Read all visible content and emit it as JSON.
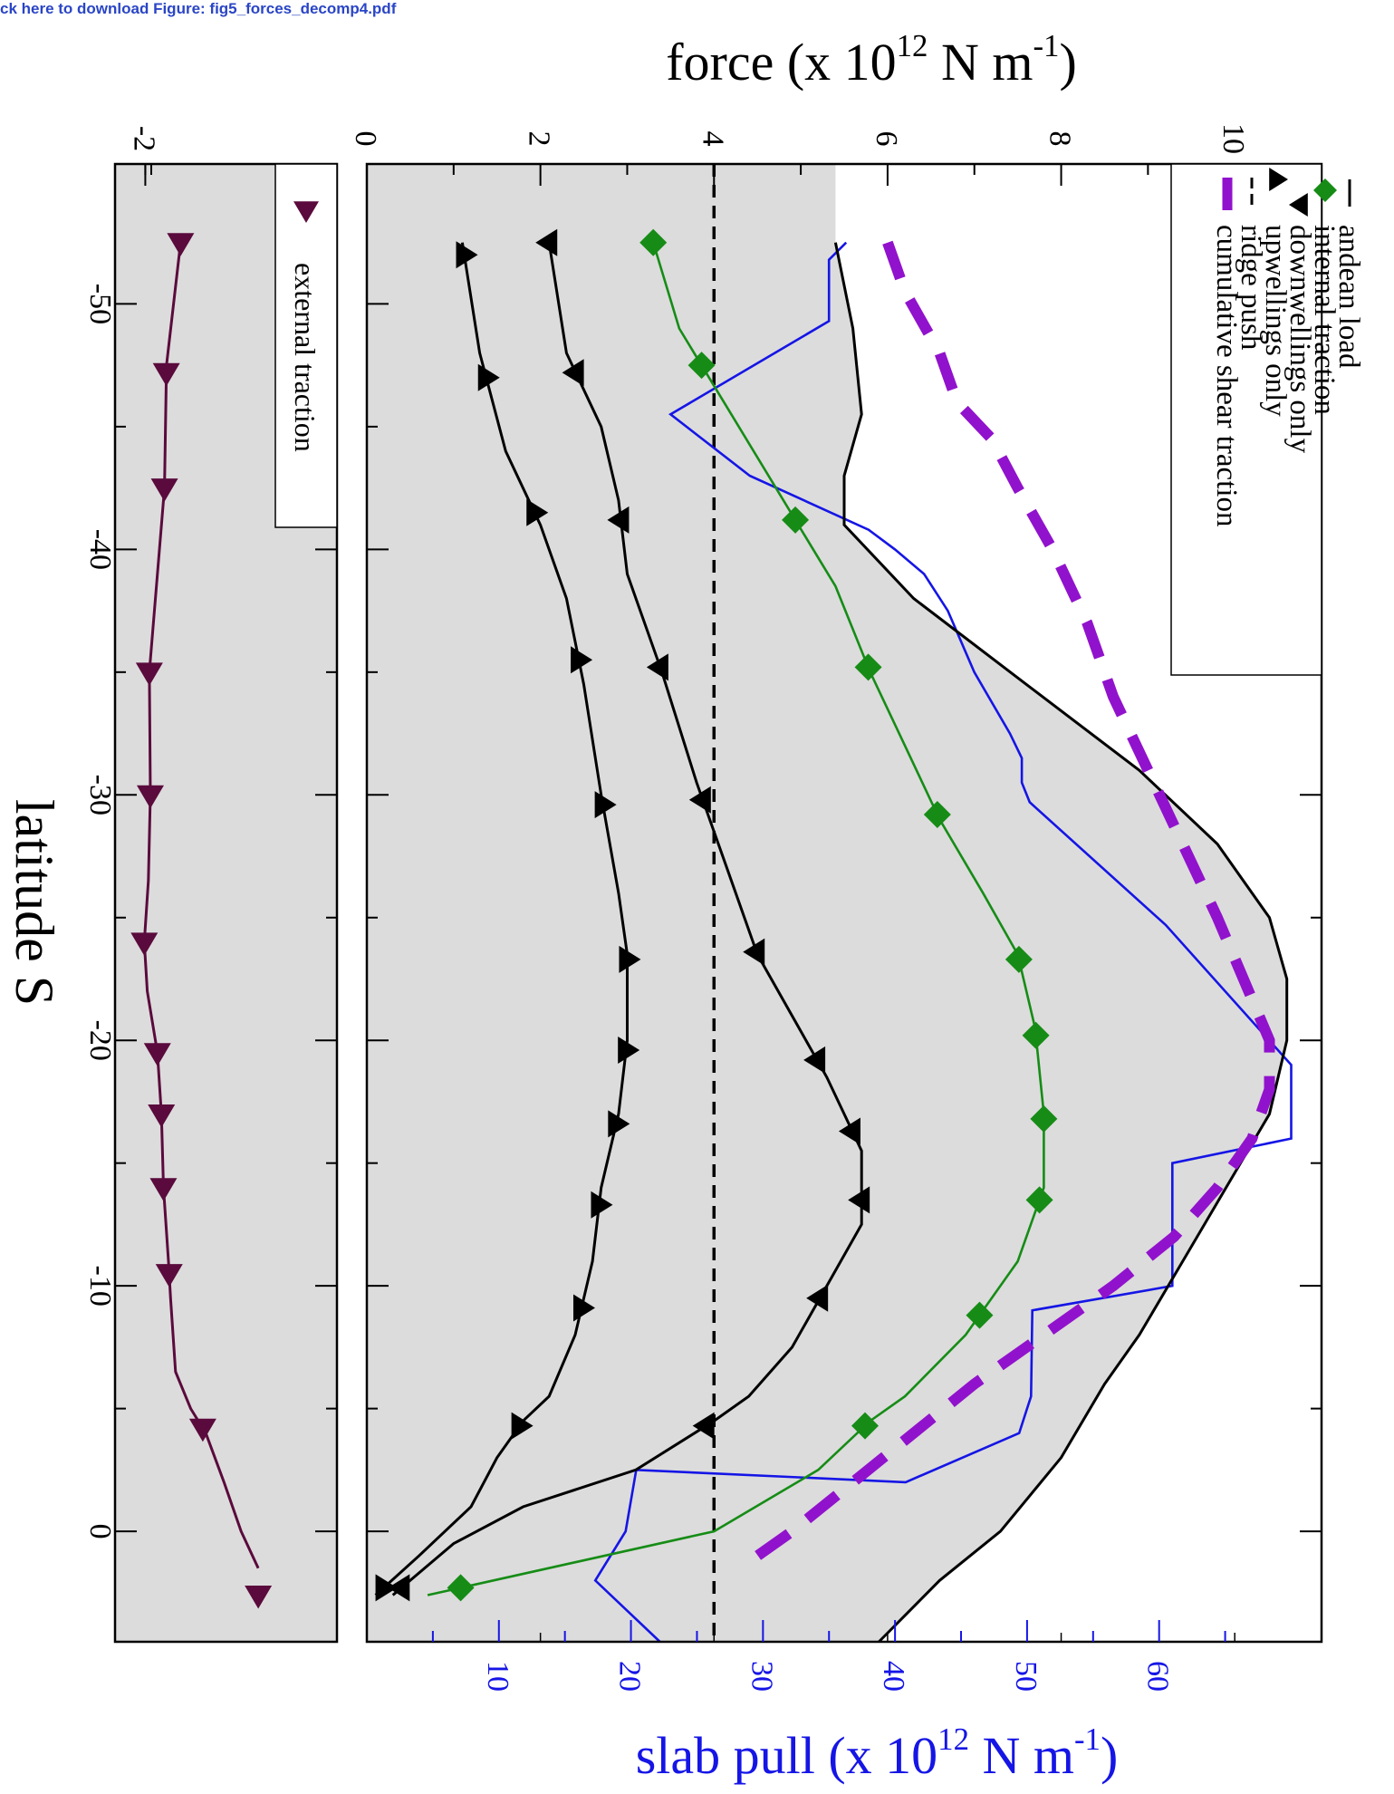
{
  "header_link": "ck here to download Figure: fig5_forces_decomp4.pdf",
  "chart_data": {
    "type": "line",
    "orientation": "rotated-90-clockwise",
    "xlabel": "latitude S",
    "x_ticks": [
      "-50",
      "-40",
      "-30",
      "-20",
      "-10",
      "0"
    ],
    "xlim": [
      -55.7,
      4.5
    ],
    "top_axis_label": {
      "base": "force (x 10",
      "sup": "12",
      "mid": " N m",
      "sup2": "-1",
      "end": ")"
    },
    "right_axis_label": {
      "base": "slab pull (x 10",
      "sup": "12",
      "mid": " N m",
      "sup2": "-1",
      "end": ")"
    },
    "force_ticks": [
      "0",
      "2",
      "4",
      "6",
      "8",
      "10"
    ],
    "force_lim": [
      0,
      11
    ],
    "slab_pull_ticks": [
      "10",
      "20",
      "30",
      "40",
      "50",
      "60"
    ],
    "slab_pull_lim": [
      0,
      72.3
    ],
    "lower_ticks": [
      "-2"
    ],
    "lower_lim": [
      -2.3,
      -0.1
    ],
    "legend_main": [
      "andean load",
      "internal traction",
      "downwellings only",
      "upwellings only",
      "ridge push",
      "cumulative shear traction"
    ],
    "legend_lower": [
      "external traction"
    ],
    "colors": {
      "andean": "#000000",
      "internal": "#168c16",
      "updown": "#000000",
      "ridge": "#000000",
      "shear": "#9112cc",
      "slab": "#1515e6",
      "external": "#5a0a3c",
      "panel_bg": "#dcdcdc",
      "slab_axis": "#1515e6"
    },
    "series": [
      {
        "name": "andean load",
        "axis": "force",
        "x": [
          -52.5,
          -49,
          -45.5,
          -43,
          -41,
          -38,
          -34.5,
          -31,
          -28,
          -25,
          -22.5,
          -20,
          -17,
          -14,
          -11,
          -8,
          -6,
          -3,
          0,
          2,
          4.5
        ],
        "y": [
          5.4,
          5.6,
          5.7,
          5.5,
          5.5,
          6.3,
          7.6,
          8.9,
          9.8,
          10.4,
          10.6,
          10.6,
          10.4,
          9.9,
          9.4,
          8.9,
          8.5,
          8.0,
          7.3,
          6.6,
          5.9
        ]
      },
      {
        "name": "internal traction",
        "axis": "force",
        "x": [
          -52.5,
          -49,
          -45.5,
          -42,
          -38.5,
          -35,
          -32,
          -29,
          -26,
          -23.5,
          -20.5,
          -17,
          -14,
          -11,
          -8,
          -5.5,
          -4.5,
          -2.5,
          0,
          2.6
        ],
        "y": [
          3.3,
          3.6,
          4.2,
          4.8,
          5.4,
          5.8,
          6.2,
          6.6,
          7.1,
          7.5,
          7.7,
          7.8,
          7.8,
          7.5,
          6.9,
          6.2,
          5.8,
          5.2,
          4.0,
          0.7
        ]
      },
      {
        "name": "downwellings only",
        "axis": "force",
        "x": [
          -52.5,
          -48,
          -45,
          -42,
          -39,
          -35,
          -30.5,
          -27.5,
          -23.5,
          -21,
          -18.5,
          -15.5,
          -12.5,
          -10,
          -7.5,
          -5.5,
          -4.5,
          -2.5,
          -1,
          0.5,
          2.6
        ],
        "y": [
          2.1,
          2.3,
          2.7,
          2.9,
          3.0,
          3.4,
          3.8,
          4.1,
          4.5,
          4.9,
          5.3,
          5.7,
          5.7,
          5.3,
          4.9,
          4.4,
          4.0,
          3.1,
          1.8,
          1.0,
          0.3
        ]
      },
      {
        "name": "upwellings only",
        "axis": "force",
        "x": [
          -52.5,
          -48,
          -44,
          -41,
          -38,
          -34.5,
          -30,
          -26,
          -23.5,
          -20,
          -17,
          -14,
          -11,
          -8,
          -5.5,
          -4.5,
          -3,
          -1,
          1,
          2.6
        ],
        "y": [
          1.1,
          1.3,
          1.6,
          2.0,
          2.3,
          2.5,
          2.7,
          2.9,
          3.0,
          3.0,
          2.9,
          2.7,
          2.6,
          2.4,
          2.1,
          1.8,
          1.5,
          1.2,
          0.6,
          0.1
        ]
      },
      {
        "name": "ridge push",
        "axis": "force",
        "type": "constant",
        "x": [
          -55.7,
          4.5
        ],
        "y": [
          4.0,
          4.0
        ]
      },
      {
        "name": "cumulative shear traction",
        "axis": "force",
        "x": [
          -52.5,
          -50.5,
          -48,
          -46,
          -44.5,
          -42.5,
          -40,
          -37,
          -34,
          -31,
          -28,
          -25,
          -22.5,
          -20,
          -18,
          -16,
          -14,
          -12,
          -10,
          -8,
          -6,
          -4,
          -2,
          0,
          1.5
        ],
        "y": [
          6.0,
          6.2,
          6.6,
          6.8,
          7.2,
          7.5,
          7.9,
          8.3,
          8.6,
          9.0,
          9.4,
          9.8,
          10.1,
          10.4,
          10.4,
          10.2,
          9.8,
          9.3,
          8.6,
          7.8,
          7.0,
          6.3,
          5.6,
          4.9,
          4.3
        ]
      },
      {
        "name": "slab pull",
        "axis": "slab_pull",
        "x": [
          -52.5,
          -51.8,
          -49.3,
          -45.5,
          -43,
          -40.8,
          -40,
          -39,
          -37.5,
          -35,
          -32.5,
          -31.5,
          -30.5,
          -29.7,
          -24.7,
          -19,
          -16,
          -15,
          -10,
          -9,
          -5.5,
          -5,
          -4,
          -2,
          -2.5,
          0,
          2,
          4.5
        ],
        "y": [
          36.3,
          35.0,
          35.0,
          23.0,
          29.0,
          38.0,
          40.0,
          42.2,
          44.0,
          46.0,
          48.7,
          49.6,
          49.6,
          50.2,
          60.5,
          70.0,
          70.0,
          61.0,
          61.0,
          50.4,
          50.3,
          50.0,
          49.4,
          40.8,
          20.4,
          19.6,
          17.3,
          22.2
        ]
      },
      {
        "name": "external traction",
        "axis": "lower",
        "x": [
          -52.5,
          -47.5,
          -42.5,
          -35,
          -30,
          -26.5,
          -24,
          -22,
          -19.5,
          -17,
          -14,
          -11,
          -9.5,
          -6.5,
          -5,
          -4,
          -2,
          0,
          1.5
        ],
        "y": [
          -1.65,
          -1.79,
          -1.81,
          -1.96,
          -1.95,
          -1.97,
          -2.01,
          -1.98,
          -1.88,
          -1.84,
          -1.82,
          -1.77,
          -1.75,
          -1.7,
          -1.55,
          -1.4,
          -1.22,
          -1.05,
          -0.88
        ]
      }
    ]
  }
}
